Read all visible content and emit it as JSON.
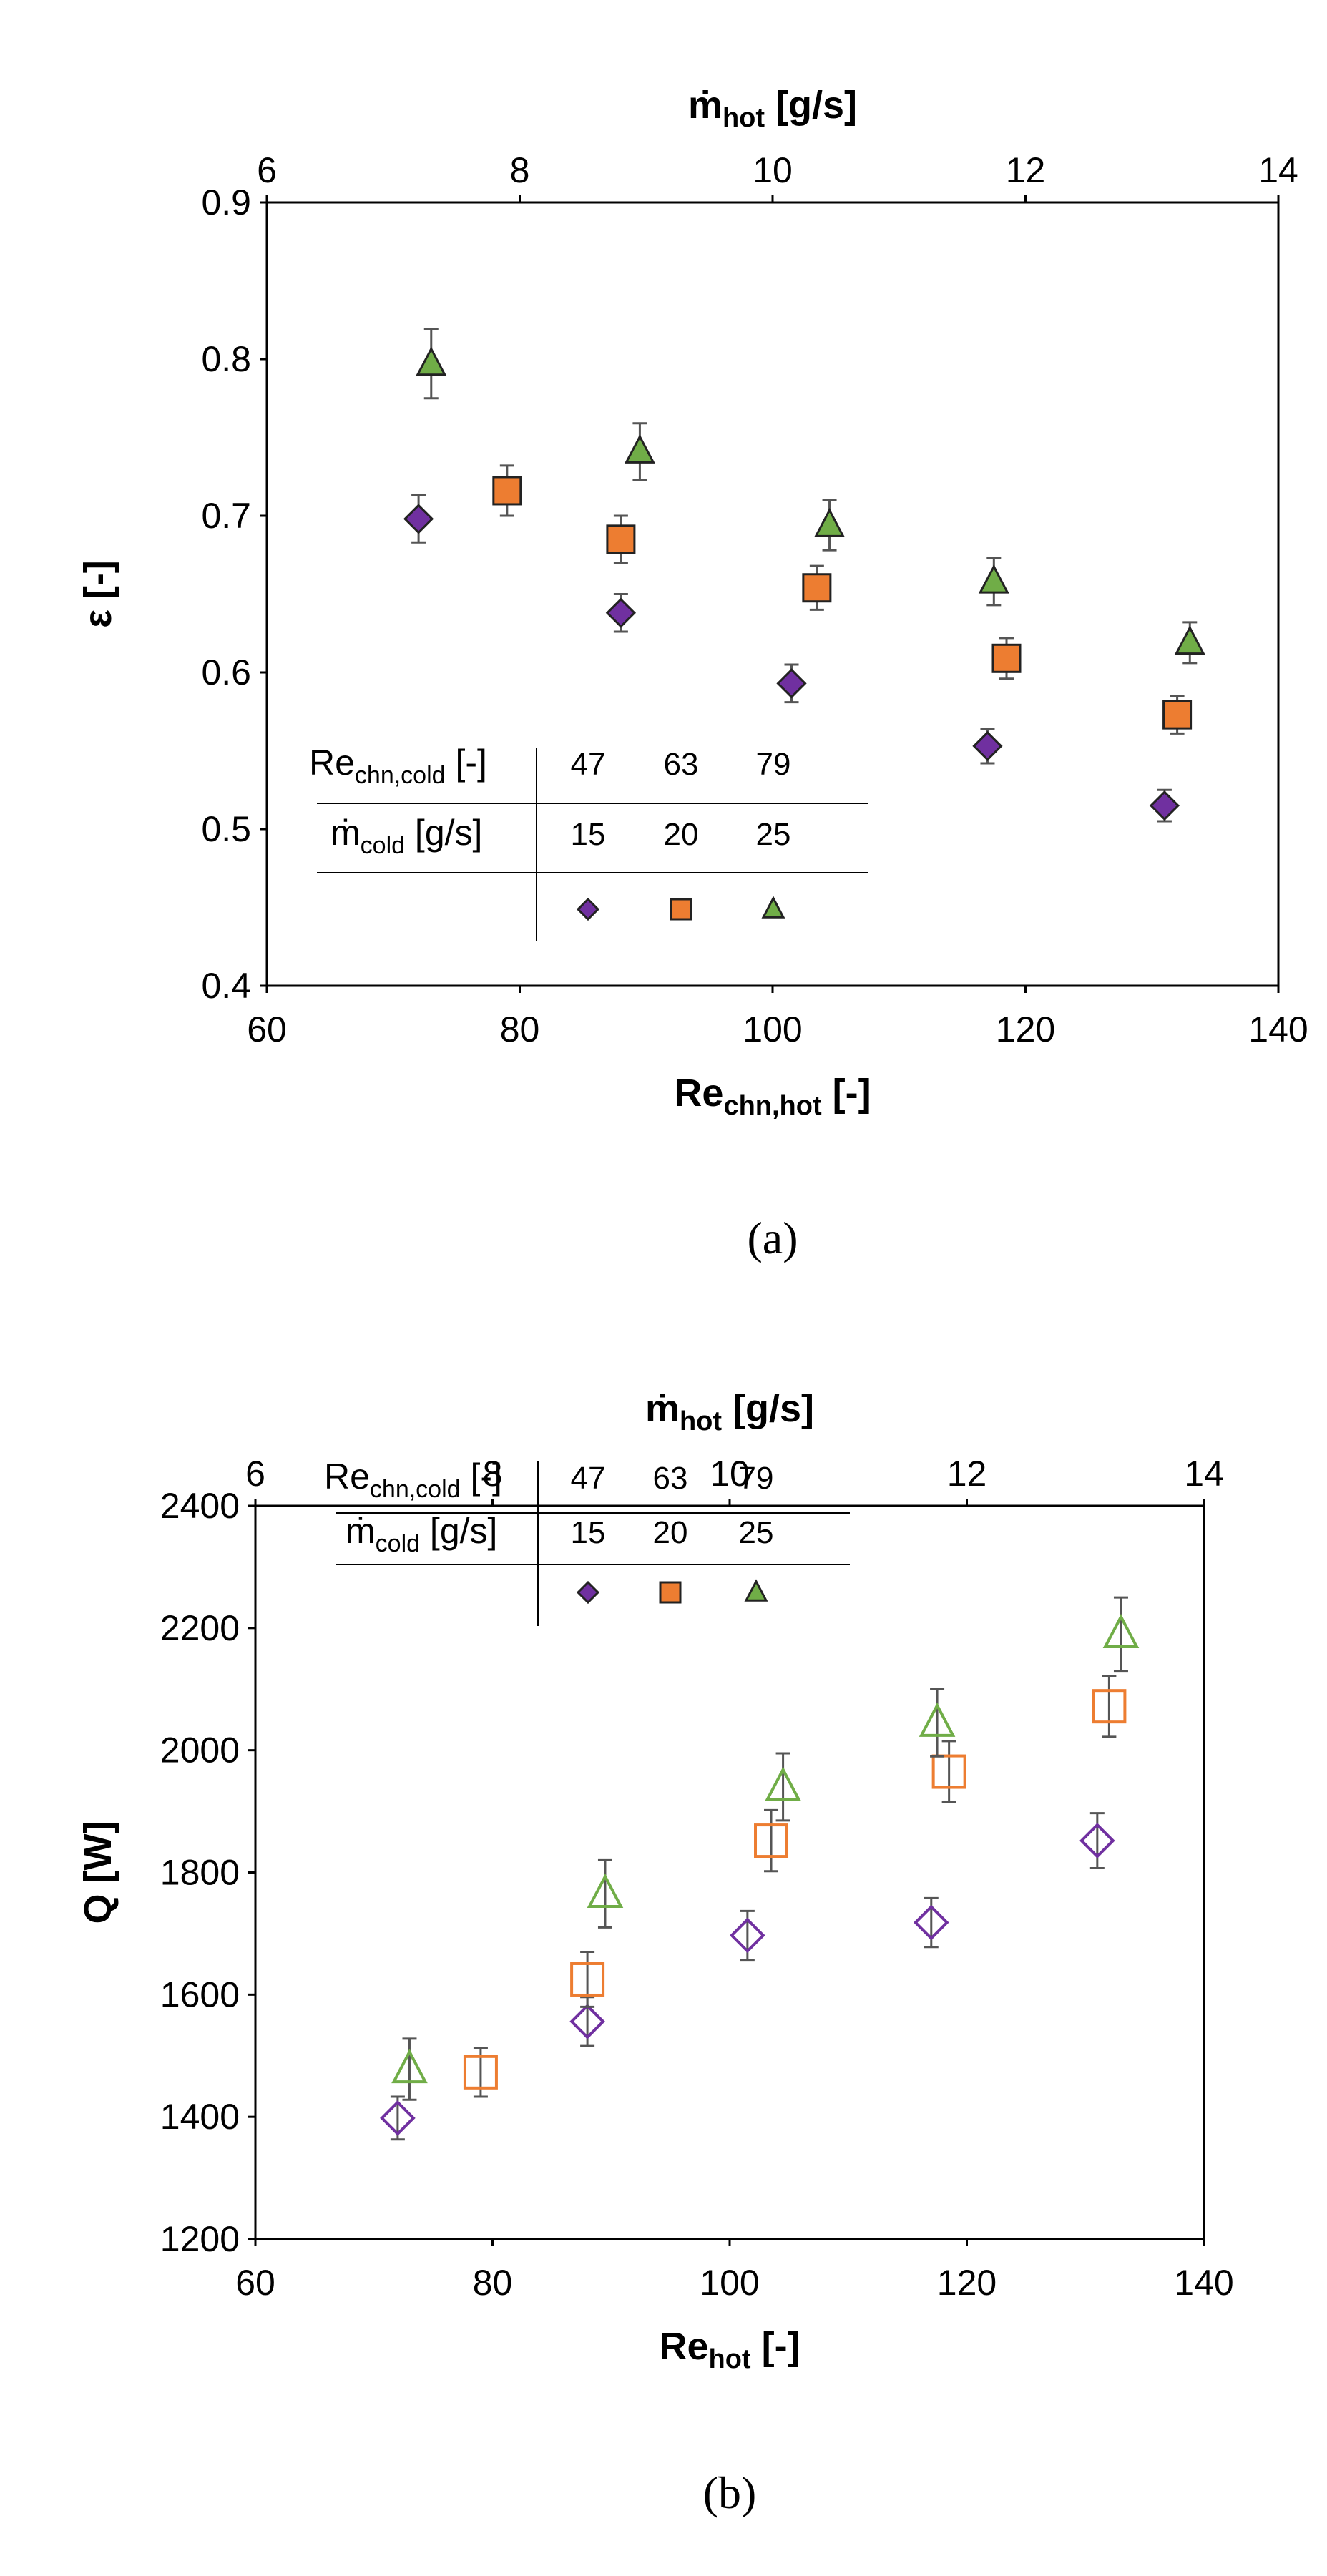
{
  "chart_data": [
    {
      "type": "scatter",
      "caption": "(a)",
      "xlabel": {
        "main": "Re",
        "sub": "chn,hot",
        "suffix": " [-]"
      },
      "x2label": {
        "main": "ṁ",
        "sub": "hot",
        "suffix": " [g/s]"
      },
      "ylabel": "ε [-]",
      "xlim": [
        60,
        140
      ],
      "x2lim": [
        6,
        14
      ],
      "ylim": [
        0.4,
        0.9
      ],
      "xticks": [
        60,
        80,
        100,
        120,
        140
      ],
      "x2ticks": [
        6,
        8,
        10,
        12,
        14
      ],
      "yticks": [
        0.4,
        0.5,
        0.6,
        0.7,
        0.8,
        0.9
      ],
      "ytick_labels": [
        "0.4",
        "0.5",
        "0.6",
        "0.7",
        "0.8",
        "0.9"
      ],
      "series": [
        {
          "name": "Re 47 / 15 g/s",
          "marker": "diamond",
          "filled": true,
          "color": "#7030A0",
          "x": [
            72,
            88,
            101.5,
            117,
            131
          ],
          "y": [
            0.698,
            0.638,
            0.593,
            0.553,
            0.515
          ],
          "err": [
            0.015,
            0.012,
            0.012,
            0.011,
            0.01
          ]
        },
        {
          "name": "Re 63 / 20 g/s",
          "marker": "square",
          "filled": true,
          "color": "#ED7D31",
          "x": [
            79,
            88,
            103.5,
            118.5,
            132
          ],
          "y": [
            0.716,
            0.685,
            0.654,
            0.609,
            0.573
          ],
          "err": [
            0.016,
            0.015,
            0.014,
            0.013,
            0.012
          ]
        },
        {
          "name": "Re 79 / 25 g/s",
          "marker": "triangle",
          "filled": true,
          "color": "#70AD47",
          "x": [
            73,
            89.5,
            104.5,
            117.5,
            133
          ],
          "y": [
            0.797,
            0.741,
            0.694,
            0.658,
            0.619
          ],
          "err": [
            0.022,
            0.018,
            0.016,
            0.015,
            0.013
          ]
        }
      ],
      "legend": {
        "row1_label": {
          "main": "Re",
          "sub": "chn,cold",
          "suffix": " [-]"
        },
        "row2_label": {
          "main": "ṁ",
          "sub": "cold",
          "suffix": " [g/s]"
        },
        "row1_values": [
          "47",
          "63",
          "79"
        ],
        "row2_values": [
          "15",
          "20",
          "25"
        ]
      }
    },
    {
      "type": "scatter",
      "caption": "(b)",
      "xlabel": {
        "main": "Re",
        "sub": "hot",
        "suffix": " [-]"
      },
      "x2label": {
        "main": "ṁ",
        "sub": "hot",
        "suffix": " [g/s]"
      },
      "ylabel": "Q [W]",
      "xlim": [
        60,
        140
      ],
      "x2lim": [
        6,
        14
      ],
      "ylim": [
        1200,
        2400
      ],
      "xticks": [
        60,
        80,
        100,
        120,
        140
      ],
      "x2ticks": [
        6,
        8,
        10,
        12,
        14
      ],
      "yticks": [
        1200,
        1400,
        1600,
        1800,
        2000,
        2200,
        2400
      ],
      "ytick_labels": [
        "1200",
        "1400",
        "1600",
        "1800",
        "2000",
        "2200",
        "2400"
      ],
      "series": [
        {
          "name": "Re 47 / 15 g/s",
          "marker": "diamond",
          "filled": false,
          "color": "#7030A0",
          "x": [
            72,
            88,
            101.5,
            117,
            131
          ],
          "y": [
            1398,
            1556,
            1697,
            1718,
            1852
          ],
          "err": [
            35,
            40,
            40,
            40,
            45
          ]
        },
        {
          "name": "Re 63 / 20 g/s",
          "marker": "square",
          "filled": false,
          "color": "#ED7D31",
          "x": [
            79,
            88,
            103.5,
            118.5,
            132
          ],
          "y": [
            1473,
            1625,
            1852,
            1965,
            2072
          ],
          "err": [
            40,
            45,
            50,
            50,
            50
          ]
        },
        {
          "name": "Re 79 / 25 g/s",
          "marker": "triangle",
          "filled": false,
          "color": "#70AD47",
          "x": [
            73,
            89.5,
            104.5,
            117.5,
            133
          ],
          "y": [
            1478,
            1765,
            1940,
            2045,
            2190
          ],
          "err": [
            50,
            55,
            55,
            55,
            60
          ]
        }
      ],
      "legend": {
        "row1_label": {
          "main": "Re",
          "sub": "chn,cold",
          "suffix": " [-]"
        },
        "row2_label": {
          "main": "ṁ",
          "sub": "cold",
          "suffix": " [g/s]"
        },
        "row1_values": [
          "47",
          "63",
          "79"
        ],
        "row2_values": [
          "15",
          "20",
          "25"
        ]
      }
    }
  ]
}
